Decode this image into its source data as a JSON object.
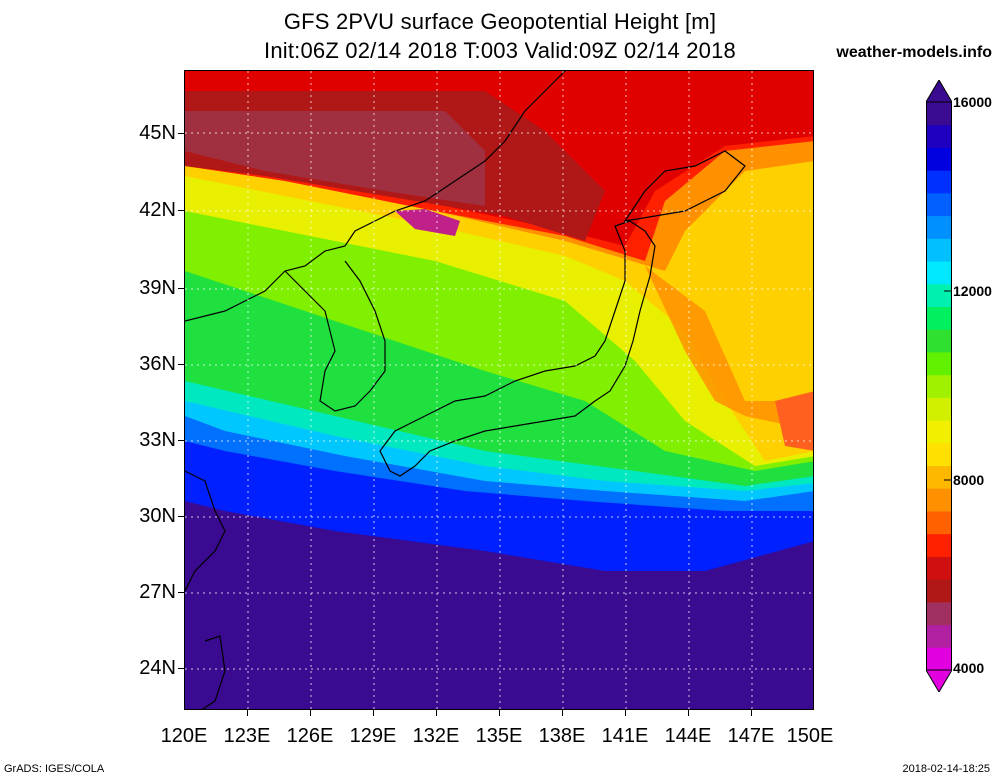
{
  "title_line1": "GFS 2PVU surface Geopotential Height [m]",
  "title_line2": "Init:06Z 02/14 2018 T:003 Valid:09Z 02/14 2018",
  "site": "weather-models.info",
  "footer_left": "GrADS: IGES/COLA",
  "footer_right": "2018-02-14-18:25",
  "lat_labels": [
    "45N",
    "42N",
    "39N",
    "36N",
    "33N",
    "30N",
    "27N",
    "24N"
  ],
  "lon_labels": [
    "120E",
    "123E",
    "126E",
    "129E",
    "132E",
    "135E",
    "138E",
    "141E",
    "144E",
    "147E",
    "150E"
  ],
  "colorbar": {
    "min": 4000,
    "max": 16000,
    "labels": [
      "16000",
      "12000",
      "8000",
      "4000"
    ],
    "colors": [
      "#e000e0",
      "#b020a0",
      "#a03060",
      "#b01818",
      "#d01010",
      "#ff2000",
      "#ff6000",
      "#ff9000",
      "#ffb800",
      "#ffe000",
      "#f0f000",
      "#d0f000",
      "#a0f000",
      "#60f000",
      "#30e030",
      "#00f060",
      "#00f0b0",
      "#00e8ff",
      "#00c0ff",
      "#0090ff",
      "#0060ff",
      "#0030ff",
      "#0000e0",
      "#2000c0",
      "#3a0a90"
    ]
  }
}
